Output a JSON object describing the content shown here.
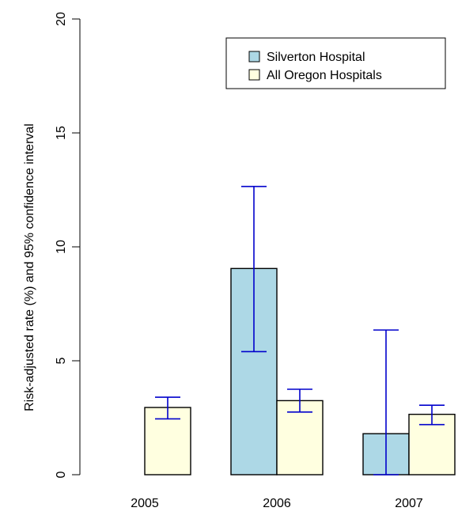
{
  "chart_data": {
    "type": "bar",
    "categories": [
      "2005",
      "2006",
      "2007"
    ],
    "ylabel": "Risk-adjusted rate (%) and 95% confidence interval",
    "ylim": [
      0,
      20
    ],
    "yticks": [
      "0",
      "5",
      "10",
      "15",
      "20"
    ],
    "grid": false,
    "legend_position": "top-right",
    "series": [
      {
        "name": "Silverton Hospital",
        "color": "#add8e6",
        "values": [
          null,
          9.05,
          1.8
        ],
        "ci_low": [
          null,
          5.4,
          0.0
        ],
        "ci_high": [
          null,
          12.65,
          6.35
        ]
      },
      {
        "name": "All Oregon Hospitals",
        "color": "#ffffe0",
        "values": [
          2.95,
          3.25,
          2.65
        ],
        "ci_low": [
          2.45,
          2.75,
          2.2
        ],
        "ci_high": [
          3.4,
          3.75,
          3.05
        ]
      }
    ]
  }
}
